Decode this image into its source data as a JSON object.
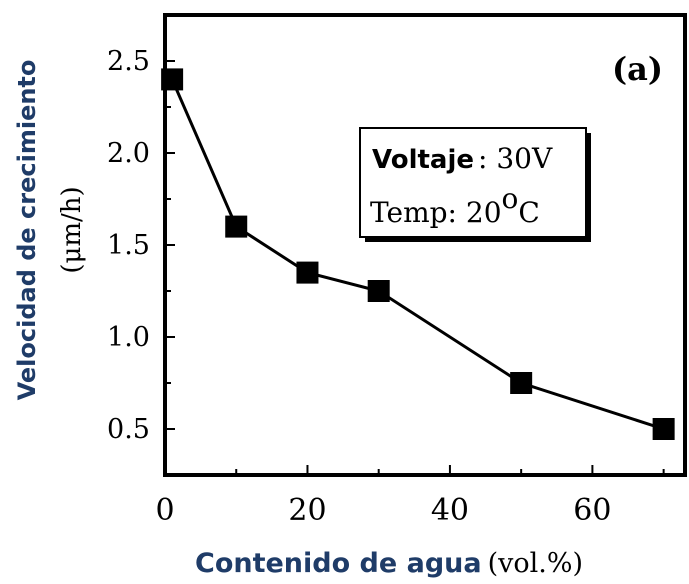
{
  "chart_data": {
    "type": "line",
    "panel_label": "(a)",
    "x": [
      1,
      10,
      20,
      30,
      50,
      70
    ],
    "y": [
      2.4,
      1.6,
      1.35,
      1.25,
      0.75,
      0.5
    ],
    "xlim": [
      0,
      73
    ],
    "ylim": [
      0.25,
      2.75
    ],
    "xticks": [
      "0",
      "20",
      "40",
      "60"
    ],
    "xtick_values": [
      0,
      20,
      40,
      60
    ],
    "yticks": [
      "0.5",
      "1.0",
      "1.5",
      "2.0",
      "2.5"
    ],
    "ytick_values": [
      0.5,
      1.0,
      1.5,
      2.0,
      2.5
    ],
    "xlabel": {
      "bold": "Contenido de agua",
      "unit": "(vol.%)"
    },
    "ylabel": {
      "bold": "Velocidad de crecimiento",
      "unit": "(μm/h)"
    },
    "annotation": {
      "voltage_label": "Voltaje",
      "voltage_value": ": 30V",
      "temp_label": "Temp: 20",
      "temp_degree": "o",
      "temp_unit": "C"
    },
    "marker": "square",
    "grid": false,
    "colors": {
      "line": "#000000",
      "label_accent": "#1f3c68"
    }
  }
}
